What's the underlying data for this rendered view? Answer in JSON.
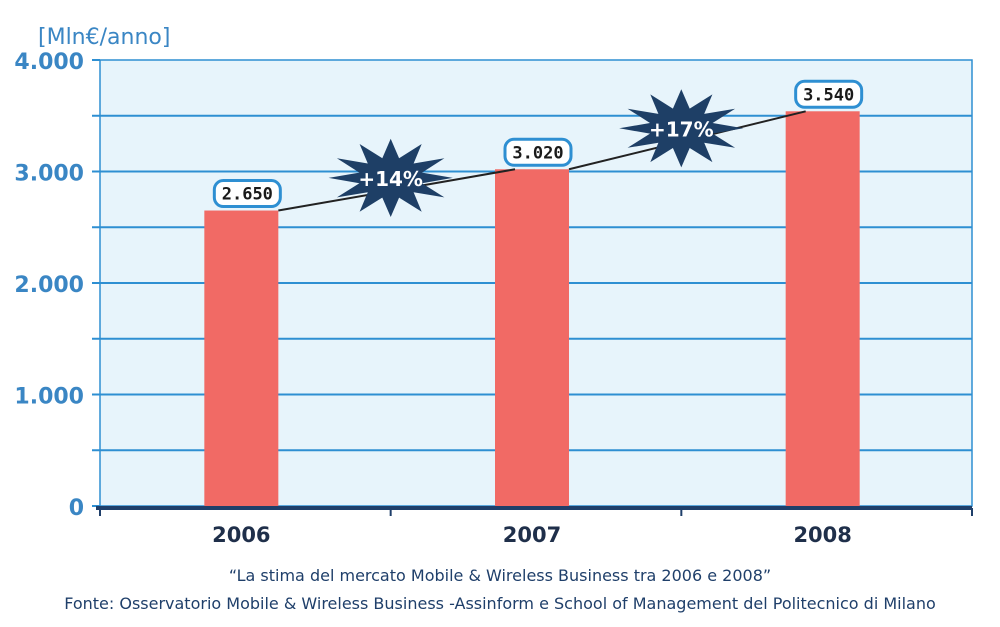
{
  "chart_data": {
    "type": "bar",
    "ylabel": "[Mln€/anno]",
    "categories": [
      "2006",
      "2007",
      "2008"
    ],
    "values": [
      2650,
      3020,
      3540
    ],
    "value_labels": [
      "2.650",
      "3.020",
      "3.540"
    ],
    "ylim": [
      0,
      4000
    ],
    "yticks": [
      0,
      1000,
      2000,
      3000,
      4000
    ],
    "ytick_labels": [
      "0",
      "1.000",
      "2.000",
      "3.000",
      "4.000"
    ],
    "grid": true,
    "growth_annotations": [
      {
        "label": "+14%",
        "from": "2006",
        "to": "2007"
      },
      {
        "label": "+17%",
        "from": "2007",
        "to": "2008"
      }
    ],
    "colors": {
      "bar": "#f16a65",
      "plot_bg": "#e7f4fb",
      "grid": "#2e8fd2",
      "axis_text": "#3a86c4",
      "star": "#1e3f66",
      "label_border": "#2e8fd2"
    }
  },
  "caption": {
    "title": "“La stima del mercato Mobile & Wireless Business tra 2006 e 2008”",
    "source": "Fonte: Osservatorio Mobile & Wireless Business -Assinform e School of Management del Politecnico di Milano"
  }
}
